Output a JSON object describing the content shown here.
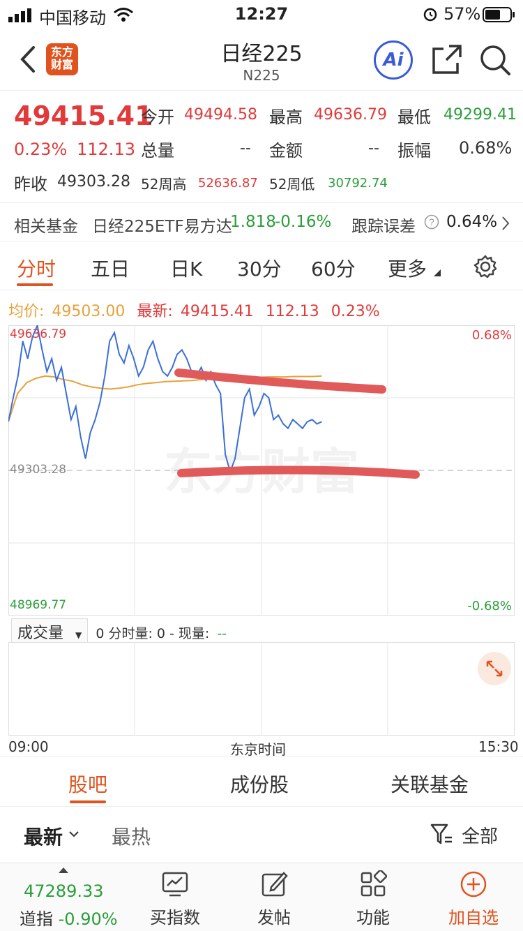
{
  "status_bar": {
    "carrier": "中国移动",
    "time": "12:27",
    "battery": "57%"
  },
  "header": {
    "logo_text": "东方财富",
    "title": "日经225",
    "subtitle": "N225",
    "ai_label": "Ai"
  },
  "quote": {
    "price": "49415.41",
    "change_pct": "0.23%",
    "change": "112.13",
    "open_label": "今开",
    "open": "49494.58",
    "high_label": "最高",
    "high": "49636.79",
    "low_label": "最低",
    "low": "49299.41",
    "volume_label": "总量",
    "volume": "--",
    "amount_label": "金额",
    "amount": "--",
    "amplitude_label": "振幅",
    "amplitude": "0.68%",
    "prev_close_label": "昨收",
    "prev_close": "49303.28",
    "wk52_high_label": "52周高",
    "wk52_high": "52636.87",
    "wk52_low_label": "52周低",
    "wk52_low": "30792.74"
  },
  "fund": {
    "label": "相关基金",
    "name": "日经225ETF易方达",
    "price": "1.818",
    "change": "-0.16%",
    "tracking_label": "跟踪误差",
    "tracking": "0.64%"
  },
  "tabs": [
    "分时",
    "五日",
    "日K",
    "30分",
    "60分",
    "更多"
  ],
  "avg": {
    "avg_label": "均价:",
    "avg_value": "49503.00",
    "latest_label": "最新:",
    "latest_value": "49415.41",
    "latest_change": "112.13",
    "latest_pct": "0.23%"
  },
  "chart_axes": {
    "y_high": "49636.79",
    "y_mid": "49303.28",
    "y_low": "48969.77",
    "pct_high": "0.68%",
    "pct_low": "-0.68%",
    "x_start": "09:00",
    "x_mid": "东京时间",
    "x_end": "15:30",
    "watermark": "东方财富"
  },
  "chart_data": {
    "type": "line",
    "ylim": [
      48969.77,
      49636.79
    ],
    "reference": 49303.28,
    "series": [
      {
        "name": "",
        "color": "#3a6fd8",
        "values": [
          49415,
          49470,
          49520,
          49600,
          49560,
          49610,
          49636,
          49580,
          49530,
          49560,
          49510,
          49540,
          49480,
          49420,
          49450,
          49380,
          49330,
          49390,
          49420,
          49460,
          49520,
          49600,
          49620,
          49570,
          49550,
          49590,
          49560,
          49520,
          49540,
          49580,
          49600,
          49560,
          49530,
          49520,
          49540,
          49570,
          49580,
          49560,
          49530,
          49520,
          49540,
          49510,
          49530,
          49500,
          49480,
          49340,
          49300,
          49330,
          49400,
          49470,
          49490,
          49430,
          49450,
          49480,
          49470,
          49420,
          49430,
          49410,
          49400,
          49420,
          49410,
          49400,
          49415,
          49420,
          49410,
          49415
        ]
      },
      {
        "name": "",
        "color": "#e8a13a",
        "values": [
          49415,
          49480,
          49505,
          49515,
          49520,
          49518,
          49512,
          49508,
          49500,
          49495,
          49492,
          49490,
          49492,
          49495,
          49500,
          49503,
          49505,
          49507,
          49508,
          49509,
          49510,
          49512,
          49513,
          49514,
          49515,
          49516,
          49517,
          49517,
          49518,
          49518,
          49518,
          49519,
          49519,
          49519,
          49520
        ]
      }
    ]
  },
  "volume": {
    "selector": "成交量",
    "detail": "0 分时量: 0 - 现量:",
    "current": "--"
  },
  "sub_tabs": [
    "股吧",
    "成份股",
    "关联基金"
  ],
  "filter": {
    "latest": "最新",
    "hot": "最热",
    "all": "全部"
  },
  "bottom_bar": {
    "index_value": "47289.33",
    "index_name": "道指",
    "index_change": "-0.90%",
    "buy_label": "买指数",
    "post_label": "发帖",
    "func_label": "功能",
    "add_label": "加自选"
  }
}
